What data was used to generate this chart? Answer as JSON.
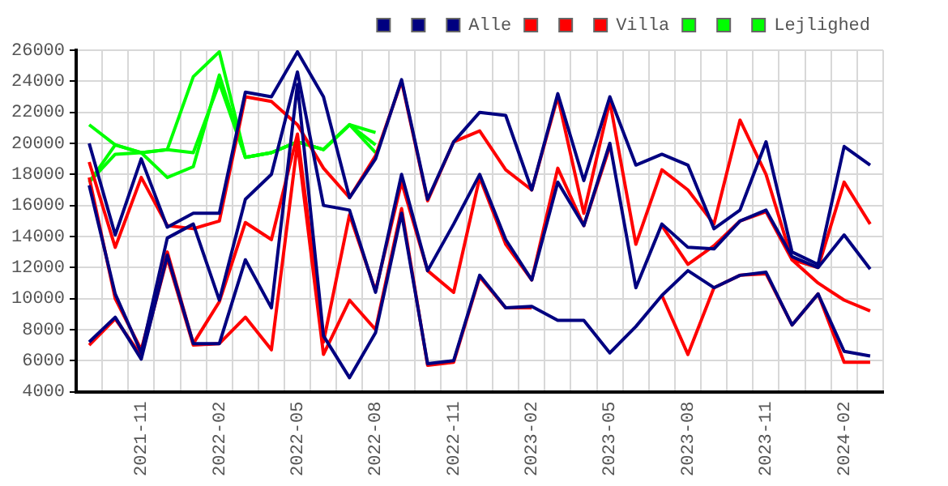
{
  "chart_data": {
    "type": "line",
    "categories": [
      null,
      null,
      "2021-11",
      null,
      null,
      "2022-02",
      null,
      null,
      "2022-05",
      null,
      null,
      "2022-08",
      null,
      null,
      "2022-11",
      null,
      null,
      "2023-02",
      null,
      null,
      "2023-05",
      null,
      null,
      "2023-08",
      null,
      null,
      "2023-11",
      null,
      null,
      "2024-02",
      null
    ],
    "series": [
      {
        "color": "#000080",
        "values": [
          20000,
          14100,
          19000,
          14600,
          15500,
          15500,
          23300,
          23000,
          25900,
          23000,
          16500,
          19000,
          24100,
          16400,
          20100,
          22000,
          21800,
          17000,
          23200,
          17600,
          23000,
          18600,
          19300,
          18600,
          14500,
          15700,
          20100,
          13000,
          12200,
          19800,
          18600
        ]
      },
      {
        "color": "#000080",
        "values": [
          17300,
          10300,
          6500,
          13900,
          14800,
          9900,
          16400,
          18000,
          24600,
          16000,
          15700,
          10400,
          18000,
          11800,
          14800,
          18000,
          13800,
          11200,
          17500,
          14700,
          20000,
          10700,
          14800,
          13300,
          13200,
          15000,
          15700,
          12700,
          12000,
          14100,
          11900
        ]
      },
      {
        "name": "Alle",
        "color": "#000080",
        "values": [
          7200,
          8800,
          6100,
          12800,
          7100,
          7100,
          12500,
          9400,
          23800,
          7600,
          4900,
          7800,
          15500,
          5800,
          6000,
          11500,
          9400,
          9500,
          8600,
          8600,
          6500,
          8200,
          10200,
          11800,
          10700,
          11500,
          11700,
          8300,
          10300,
          6600,
          6300
        ]
      },
      {
        "color": "#ff0000",
        "values": [
          18800,
          13300,
          17800,
          14700,
          14500,
          15000,
          23000,
          22700,
          21200,
          18400,
          16500,
          19200,
          24000,
          16300,
          20100,
          20800,
          18300,
          17000,
          23000,
          15500,
          22700,
          13500,
          18300,
          17000,
          14800,
          21500,
          18000,
          12500,
          12000,
          17500,
          14800
        ]
      },
      {
        "color": "#ff0000",
        "values": [
          17800,
          10000,
          6700,
          13000,
          7100,
          9800,
          14900,
          13800,
          20600,
          7200,
          15400,
          10500,
          17500,
          11800,
          10400,
          17800,
          13500,
          11200,
          18400,
          14700,
          19800,
          null,
          14700,
          12200,
          13400,
          15000,
          15600,
          12500,
          11000,
          9900,
          9200
        ]
      },
      {
        "name": "Villa",
        "color": "#ff0000",
        "values": [
          7000,
          8700,
          6300,
          12600,
          7000,
          7100,
          8800,
          6700,
          20000,
          6400,
          9900,
          8000,
          15800,
          5700,
          5900,
          11400,
          9400,
          9400,
          null,
          null,
          null,
          null,
          10200,
          6400,
          10700,
          11500,
          11600,
          8300,
          10300,
          5900,
          5900
        ]
      },
      {
        "color": "#00ff00",
        "values": [
          21200,
          19900,
          19400,
          19600,
          24300,
          25900,
          19100,
          19400,
          20100,
          19600,
          21200,
          19400,
          null,
          null,
          null,
          null,
          null,
          null,
          null,
          null,
          null,
          null,
          null,
          null,
          null,
          null,
          null,
          null,
          null,
          null,
          null
        ]
      },
      {
        "color": "#00ff00",
        "values": [
          17500,
          19900,
          19400,
          17800,
          18500,
          24400,
          19100,
          19400,
          20100,
          19600,
          21200,
          20700,
          null,
          null,
          null,
          null,
          null,
          null,
          null,
          null,
          null,
          null,
          null,
          null,
          null,
          null,
          null,
          null,
          null,
          null,
          null
        ]
      },
      {
        "name": "Lejlighed",
        "color": "#00ff00",
        "values": [
          17500,
          19300,
          19400,
          19600,
          19400,
          23900,
          19100,
          19400,
          20100,
          19600,
          21200,
          19900,
          null,
          null,
          null,
          null,
          null,
          null,
          null,
          null,
          null,
          null,
          null,
          null,
          null,
          null,
          null,
          null,
          null,
          null,
          null
        ]
      }
    ],
    "ylim": [
      4000,
      26000
    ],
    "yticks": [
      4000,
      6000,
      8000,
      10000,
      12000,
      14000,
      16000,
      18000,
      20000,
      22000,
      24000,
      26000
    ],
    "grid": true,
    "legend": "top right",
    "marker": "none",
    "line_style": "solid"
  }
}
